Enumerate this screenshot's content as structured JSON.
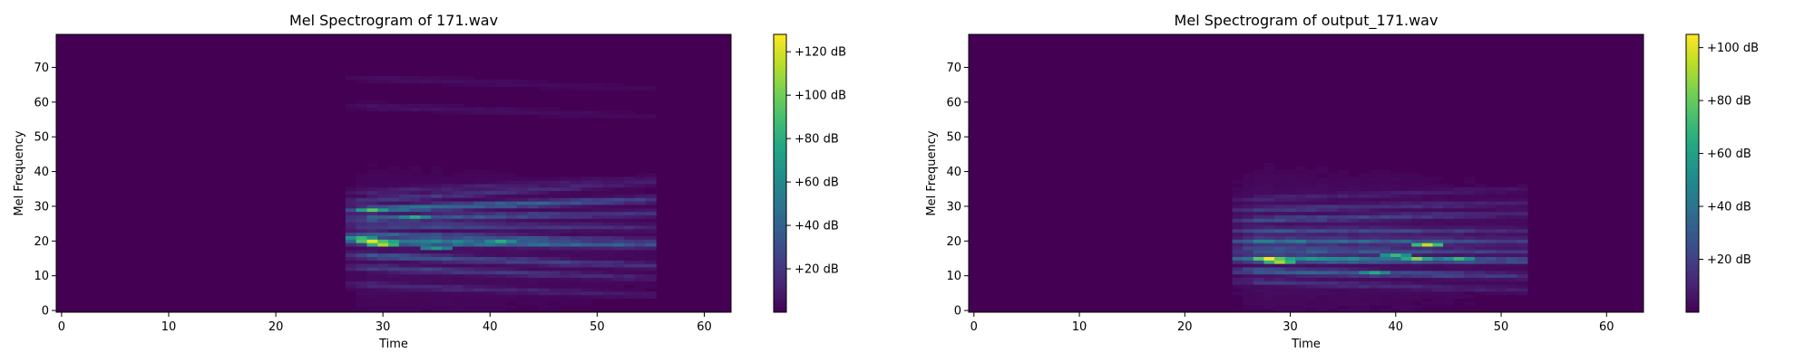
{
  "chart_data": [
    {
      "type": "heatmap",
      "title": "Mel Spectrogram of 171.wav",
      "xlabel": "Time",
      "ylabel": "Mel Frequency",
      "xlim": [
        -0.5,
        62.5
      ],
      "ylim": [
        -0.5,
        79.5
      ],
      "xticks": [
        "0",
        "10",
        "20",
        "30",
        "40",
        "50",
        "60"
      ],
      "yticks": [
        "0",
        "10",
        "20",
        "30",
        "40",
        "50",
        "60",
        "70"
      ],
      "colormap": "viridis",
      "colorbar": {
        "range": [
          0,
          128
        ],
        "ticks": [
          {
            "value": 20,
            "label": "+20 dB"
          },
          {
            "value": 40,
            "label": "+40 dB"
          },
          {
            "value": 60,
            "label": "+60 dB"
          },
          {
            "value": 80,
            "label": "+80 dB"
          },
          {
            "value": 100,
            "label": "+100 dB"
          },
          {
            "value": 120,
            "label": "+120 dB"
          }
        ]
      },
      "active_frames": [
        27,
        55
      ],
      "bands": [
        {
          "f0": 7.5,
          "f1": 4.5,
          "peak": 30
        },
        {
          "f0": 12.5,
          "f1": 9.5,
          "peak": 45
        },
        {
          "f0": 16,
          "f1": 13,
          "peak": 65
        },
        {
          "f0": 20,
          "f1": 19,
          "peak": 122
        },
        {
          "f0": 22,
          "f1": 20,
          "peak": 75
        },
        {
          "f0": 24.5,
          "f1": 24,
          "peak": 55
        },
        {
          "f0": 26.5,
          "f1": 28,
          "peak": 70
        },
        {
          "f0": 29,
          "f1": 32,
          "peak": 95
        },
        {
          "f0": 31.5,
          "f1": 37,
          "peak": 40
        },
        {
          "f0": 34,
          "f1": 38,
          "peak": 25
        },
        {
          "f0": 59,
          "f1": 56,
          "peak": 12
        },
        {
          "f0": 67,
          "f1": 64,
          "peak": 10
        }
      ],
      "hotspots": [
        {
          "t": 29,
          "f": 20,
          "value": 122
        },
        {
          "t": 30,
          "f": 19,
          "value": 110
        },
        {
          "t": 29,
          "f": 29,
          "value": 95
        },
        {
          "t": 28,
          "f": 21,
          "value": 85
        },
        {
          "t": 41,
          "f": 20,
          "value": 80
        },
        {
          "t": 33,
          "f": 27,
          "value": 80
        },
        {
          "t": 35,
          "f": 18,
          "value": 70
        }
      ]
    },
    {
      "type": "heatmap",
      "title": "Mel Spectrogram of output_171.wav",
      "xlabel": "Time",
      "ylabel": "Mel Frequency",
      "xlim": [
        -0.5,
        63.5
      ],
      "ylim": [
        -0.5,
        79.5
      ],
      "xticks": [
        "0",
        "10",
        "20",
        "30",
        "40",
        "50",
        "60"
      ],
      "yticks": [
        "0",
        "10",
        "20",
        "30",
        "40",
        "50",
        "60",
        "70"
      ],
      "colormap": "viridis",
      "colorbar": {
        "range": [
          0,
          105
        ],
        "ticks": [
          {
            "value": 20,
            "label": "+20 dB"
          },
          {
            "value": 40,
            "label": "+40 dB"
          },
          {
            "value": 60,
            "label": "+60 dB"
          },
          {
            "value": 80,
            "label": "+80 dB"
          },
          {
            "value": 100,
            "label": "+100 dB"
          }
        ]
      },
      "active_frames": [
        25,
        52
      ],
      "bands": [
        {
          "f0": 8.5,
          "f1": 6,
          "peak": 30
        },
        {
          "f0": 11.5,
          "f1": 10,
          "peak": 60
        },
        {
          "f0": 15,
          "f1": 14.5,
          "peak": 104
        },
        {
          "f0": 17.5,
          "f1": 17,
          "peak": 60
        },
        {
          "f0": 20,
          "f1": 20,
          "peak": 75
        },
        {
          "f0": 23,
          "f1": 23,
          "peak": 50
        },
        {
          "f0": 26,
          "f1": 28,
          "peak": 45
        },
        {
          "f0": 29,
          "f1": 31,
          "peak": 35
        },
        {
          "f0": 32,
          "f1": 35,
          "peak": 20
        }
      ],
      "hotspots": [
        {
          "t": 28,
          "f": 15,
          "value": 104
        },
        {
          "t": 29,
          "f": 14,
          "value": 90
        },
        {
          "t": 43,
          "f": 19,
          "value": 95
        },
        {
          "t": 42,
          "f": 15,
          "value": 85
        },
        {
          "t": 46,
          "f": 15,
          "value": 70
        },
        {
          "t": 38,
          "f": 11,
          "value": 65
        },
        {
          "t": 40,
          "f": 16,
          "value": 70
        }
      ]
    }
  ]
}
